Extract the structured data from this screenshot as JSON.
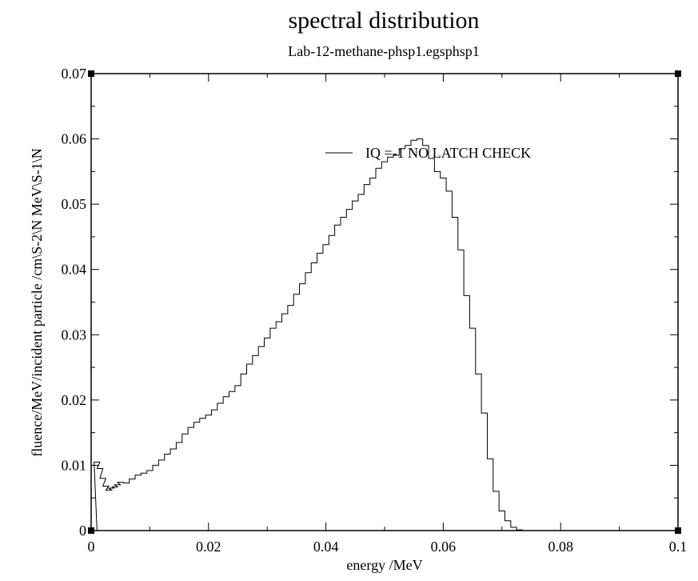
{
  "chart_data": {
    "type": "line",
    "title": "spectral distribution",
    "subtitle": "Lab-12-methane-phsp1.egsphsp1",
    "xlabel": "energy /MeV",
    "ylabel": "fluence/MeV/incident particle /cm\\S-2\\N MeV\\S-1\\N",
    "xlim": [
      0,
      0.1
    ],
    "ylim": [
      0,
      0.07
    ],
    "x_ticks": [
      "0",
      "0.02",
      "0.04",
      "0.06",
      "0.08",
      "0.1"
    ],
    "y_ticks": [
      "0",
      "0.01",
      "0.02",
      "0.03",
      "0.04",
      "0.05",
      "0.06",
      "0.07"
    ],
    "grid": false,
    "legend_position": "top-right",
    "step": true,
    "series": [
      {
        "name": "IQ =-1 NO LATCH CHECK",
        "color": "#000000",
        "x": [
          0.0005,
          0.001,
          0.0015,
          0.002,
          0.0025,
          0.003,
          0.0035,
          0.004,
          0.0045,
          0.005,
          0.006,
          0.007,
          0.008,
          0.009,
          0.01,
          0.011,
          0.012,
          0.013,
          0.014,
          0.015,
          0.016,
          0.017,
          0.018,
          0.019,
          0.02,
          0.021,
          0.022,
          0.023,
          0.024,
          0.025,
          0.026,
          0.027,
          0.028,
          0.029,
          0.03,
          0.031,
          0.032,
          0.033,
          0.034,
          0.035,
          0.036,
          0.037,
          0.038,
          0.039,
          0.04,
          0.041,
          0.042,
          0.043,
          0.044,
          0.045,
          0.046,
          0.047,
          0.048,
          0.049,
          0.05,
          0.051,
          0.052,
          0.053,
          0.054,
          0.055,
          0.056,
          0.057,
          0.058,
          0.059,
          0.06,
          0.061,
          0.062,
          0.063,
          0.064,
          0.065,
          0.066,
          0.067,
          0.068,
          0.069,
          0.07,
          0.071,
          0.072,
          0.073,
          0.074
        ],
        "y": [
          0.0,
          0.0105,
          0.0095,
          0.008,
          0.0068,
          0.0062,
          0.0065,
          0.0067,
          0.007,
          0.0074,
          0.0073,
          0.0079,
          0.0085,
          0.0088,
          0.0092,
          0.01,
          0.0108,
          0.0117,
          0.0125,
          0.0135,
          0.0148,
          0.0158,
          0.0166,
          0.0172,
          0.0177,
          0.0185,
          0.0195,
          0.0205,
          0.0213,
          0.0222,
          0.024,
          0.0255,
          0.0268,
          0.0282,
          0.0295,
          0.031,
          0.032,
          0.0332,
          0.0345,
          0.0362,
          0.0378,
          0.0395,
          0.041,
          0.0425,
          0.0438,
          0.0452,
          0.0468,
          0.048,
          0.0492,
          0.0505,
          0.0515,
          0.053,
          0.054,
          0.0555,
          0.0565,
          0.0572,
          0.0575,
          0.0585,
          0.059,
          0.0598,
          0.06,
          0.059,
          0.057,
          0.055,
          0.054,
          0.052,
          0.048,
          0.043,
          0.036,
          0.031,
          0.024,
          0.018,
          0.011,
          0.006,
          0.003,
          0.0015,
          0.0005,
          0.0001,
          0.0
        ]
      }
    ]
  }
}
